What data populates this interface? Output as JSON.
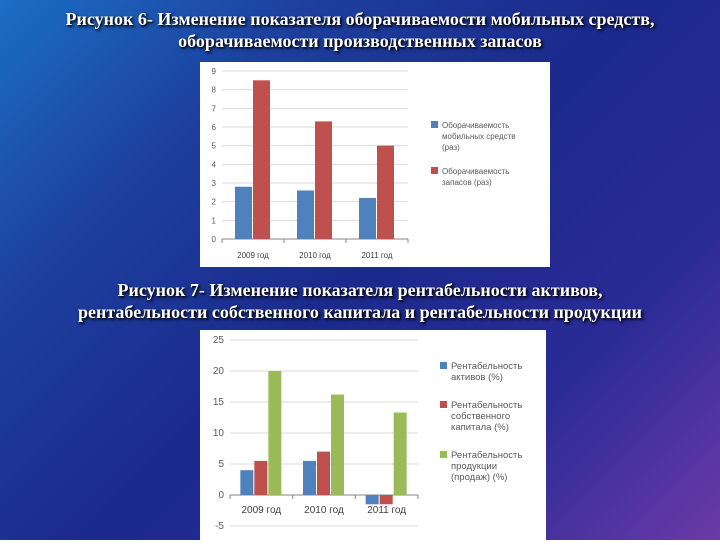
{
  "slide": {
    "caption1": "Рисунок 6- Изменение показателя оборачиваемости мобильных средств,\nоборачиваемости производственных запасов",
    "caption2": "Рисунок 7- Изменение показателя рентабельности активов,\nрентабельности собственного капитала и рентабельности продукции"
  },
  "colors": {
    "blue": "#4f81bd",
    "red": "#c0504d",
    "green": "#9bbb59",
    "grid": "#d9d9d9"
  },
  "chart_data": [
    {
      "type": "bar",
      "categories": [
        "2009 год",
        "2010 год",
        "2011 год"
      ],
      "series": [
        {
          "name": "Оборачиваемость мобильных средств (раз)",
          "legend_lines": [
            "Оборачиваемость",
            "мобильных средств",
            "(раз)"
          ],
          "values": [
            2.8,
            2.6,
            2.2
          ],
          "color": "#4f81bd"
        },
        {
          "name": "Оборачиваемость запасов (раз)",
          "legend_lines": [
            "Оборачиваемость",
            "запасов (раз)"
          ],
          "values": [
            8.5,
            6.3,
            5.0
          ],
          "color": "#c0504d"
        }
      ],
      "ylim": [
        0,
        9
      ],
      "yticks": [
        "0",
        "1",
        "2",
        "3",
        "4",
        "5",
        "6",
        "7",
        "8",
        "9"
      ],
      "grid": true,
      "legend": "right"
    },
    {
      "type": "bar",
      "categories": [
        "2009 год",
        "2010 год",
        "2011 год"
      ],
      "series": [
        {
          "name": "Рентабельность активов (%)",
          "legend_lines": [
            "Рентабельность",
            "активов (%)"
          ],
          "values": [
            4.0,
            5.5,
            -1.5
          ],
          "color": "#4f81bd"
        },
        {
          "name": "Рентабельность собственного капитала (%)",
          "legend_lines": [
            "Рентабельность",
            "собственного",
            "капитала (%)"
          ],
          "values": [
            5.5,
            7.0,
            -1.5
          ],
          "color": "#c0504d"
        },
        {
          "name": "Рентабельность продукции (продаж) (%)",
          "legend_lines": [
            "Рентабельность",
            "продукции",
            "(продаж) (%)"
          ],
          "values": [
            20.0,
            16.2,
            13.3
          ],
          "color": "#9bbb59"
        }
      ],
      "ylim": [
        -5,
        25
      ],
      "yticks": [
        "-5",
        "0",
        "5",
        "10",
        "15",
        "20",
        "25"
      ],
      "grid": true,
      "legend": "right"
    }
  ]
}
